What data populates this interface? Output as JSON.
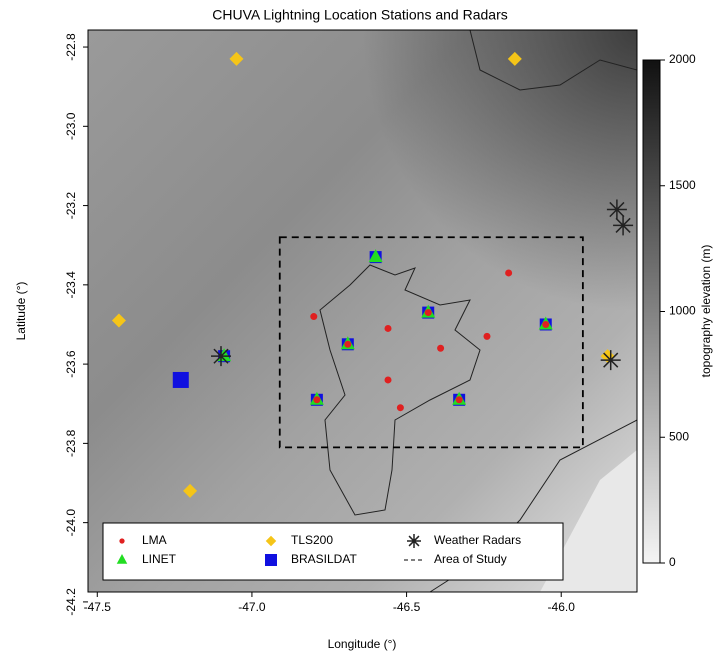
{
  "chart_data": {
    "type": "scatter",
    "title": "CHUVA Lightning Location Stations and Radars",
    "x_label": "Longitude (°)",
    "y_label": "Latitude (°)",
    "xlim": [
      -47.53,
      -45.755
    ],
    "ylim": [
      -24.175,
      -22.757
    ],
    "xticks": [
      -47.5,
      {
        "value": -47,
        "label": "-47.0"
      },
      -46.5,
      {
        "value": -46,
        "label": "-46.0"
      }
    ],
    "yticks": [
      -22.8,
      {
        "value": -23,
        "label": "-23.0"
      },
      -23.2,
      -23.4,
      -23.6,
      -23.8,
      {
        "value": -24,
        "label": "-24.0"
      },
      -24.2
    ],
    "series": [
      {
        "name": "LMA",
        "color": "#e02020",
        "marker": "circle",
        "x": [
          -46.17,
          -46.8,
          -46.56,
          -46.43,
          -46.69,
          -46.24,
          -46.39,
          -46.56,
          -46.52,
          -46.79,
          -46.33,
          -46.05
        ],
        "values": [
          -23.37,
          -23.48,
          -23.51,
          -23.47,
          -23.55,
          -23.53,
          -23.56,
          -23.64,
          -23.71,
          -23.69,
          -23.69,
          -23.5
        ]
      },
      {
        "name": "LINET",
        "color": "#22dd22",
        "marker": "triangle",
        "x": [
          -46.6,
          -46.43,
          -46.69,
          -46.05,
          -46.79,
          -46.33,
          -47.09
        ],
        "values": [
          -23.33,
          -23.47,
          -23.55,
          -23.5,
          -23.69,
          -23.69,
          -23.58
        ]
      },
      {
        "name": "TLS200",
        "color": "#f5c518",
        "marker": "diamond",
        "x": [
          -47.05,
          -46.15,
          -47.43,
          -47.2,
          -45.85
        ],
        "values": [
          -22.83,
          -22.83,
          -23.49,
          -23.92,
          -23.58
        ]
      },
      {
        "name": "BRASILDAT",
        "color": "#1010e0",
        "marker": "square",
        "x": [
          -46.6,
          -46.43,
          -46.69,
          -46.05,
          -46.79,
          -46.33,
          -47.09,
          -47.23
        ],
        "values": [
          -23.33,
          -23.47,
          -23.55,
          -23.5,
          -23.69,
          -23.69,
          -23.58,
          -23.64
        ]
      },
      {
        "name": "Weather Radars",
        "color": "#222222",
        "marker": "asterisk",
        "x": [
          -45.82,
          -45.8,
          -45.84,
          -47.1
        ],
        "values": [
          -23.21,
          -23.25,
          -23.59,
          -23.58
        ]
      }
    ],
    "study_area": {
      "name": "Area of Study",
      "x": [
        -46.91,
        -45.93
      ],
      "values": [
        -23.81,
        -23.28
      ]
    },
    "colorbar": {
      "label": "topography elevation (m)",
      "lim": [
        0,
        2000
      ],
      "ticks": [
        0,
        500,
        1000,
        1500,
        2000
      ]
    }
  }
}
